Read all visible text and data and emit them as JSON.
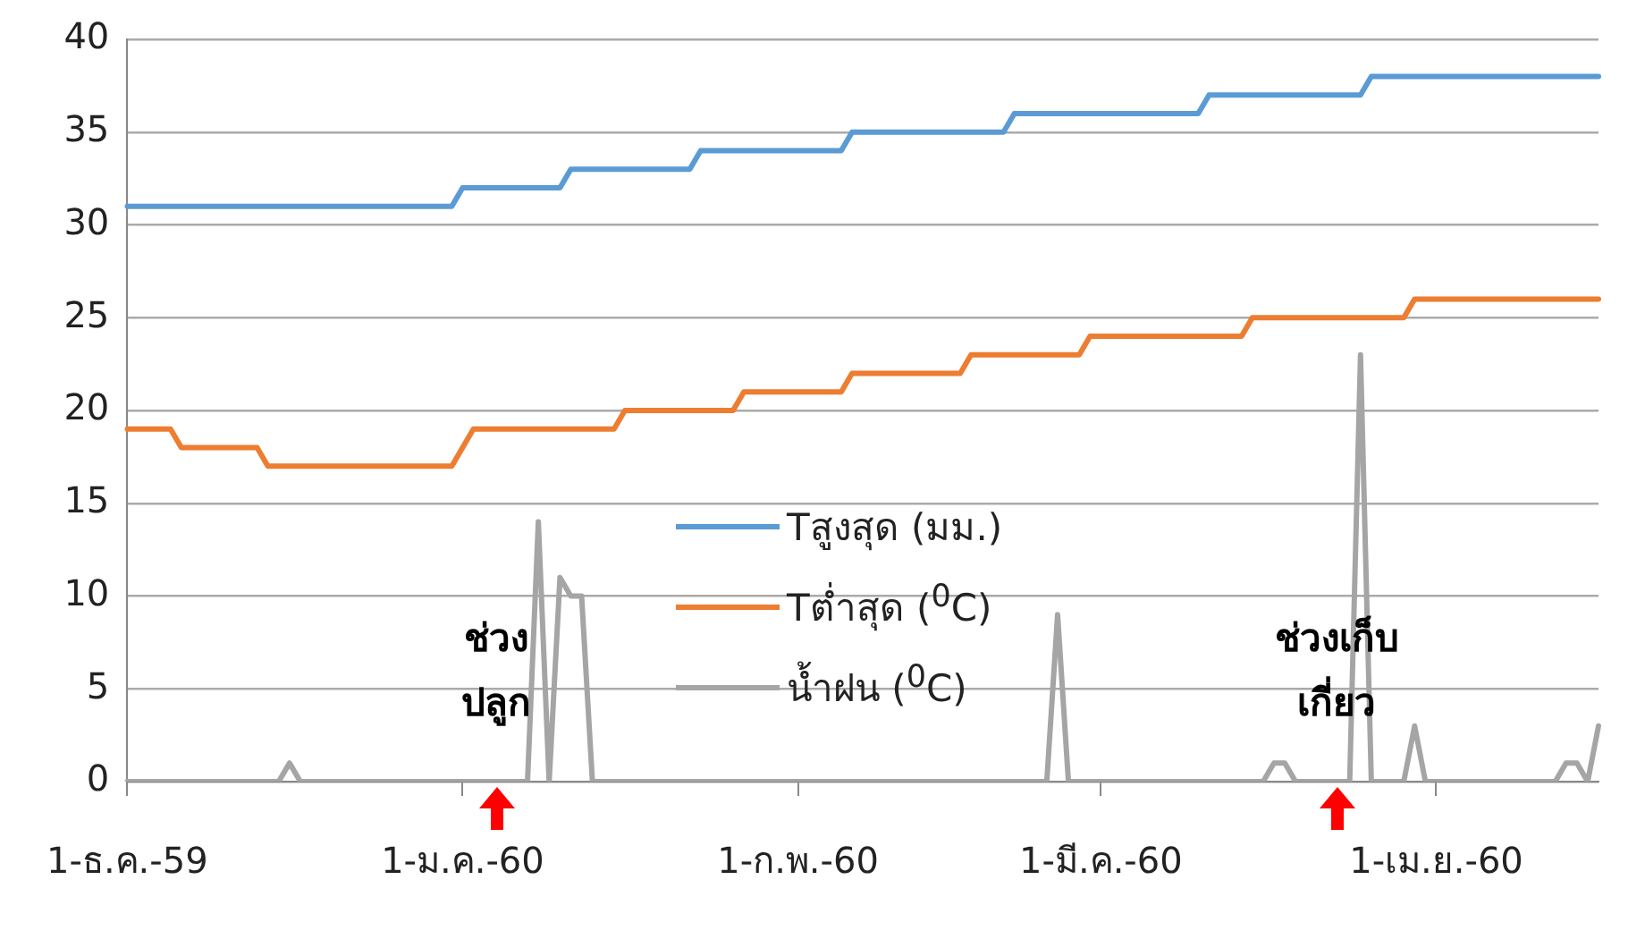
{
  "chart_data": {
    "type": "line",
    "ylim": [
      0,
      40
    ],
    "categories": [
      "1-ธ.ค.-59",
      null,
      null,
      null,
      null,
      null,
      null,
      null,
      null,
      null,
      null,
      null,
      null,
      null,
      null,
      null,
      null,
      null,
      null,
      null,
      null,
      null,
      null,
      null,
      null,
      null,
      null,
      null,
      null,
      null,
      null,
      "1-ม.ค.-60",
      null,
      null,
      null,
      null,
      null,
      null,
      null,
      null,
      null,
      null,
      null,
      null,
      null,
      null,
      null,
      null,
      null,
      null,
      null,
      null,
      null,
      null,
      null,
      null,
      null,
      null,
      null,
      null,
      null,
      null,
      "1-ก.พ.-60",
      null,
      null,
      null,
      null,
      null,
      null,
      null,
      null,
      null,
      null,
      null,
      null,
      null,
      null,
      null,
      null,
      null,
      null,
      null,
      null,
      null,
      null,
      null,
      null,
      null,
      null,
      null,
      "1-มี.ค.-60",
      null,
      null,
      null,
      null,
      null,
      null,
      null,
      null,
      null,
      null,
      null,
      null,
      null,
      null,
      null,
      null,
      null,
      null,
      null,
      null,
      null,
      null,
      null,
      null,
      null,
      null,
      null,
      null,
      null,
      null,
      "1-เม.ย.-60",
      null,
      null,
      null,
      null,
      null,
      null,
      null,
      null,
      null,
      null,
      null,
      null,
      null,
      null,
      null
    ],
    "yticks": [
      0,
      5,
      10,
      15,
      20,
      25,
      30,
      35,
      40
    ],
    "grid": "y",
    "legend": "center",
    "marker": "none",
    "line_style": "solid",
    "series": [
      {
        "name": "Tสูงสุด (มม.)",
        "color": "#5b9bd5",
        "values": [
          31,
          31,
          31,
          31,
          31,
          31,
          31,
          31,
          31,
          31,
          31,
          31,
          31,
          31,
          31,
          31,
          31,
          31,
          31,
          31,
          31,
          31,
          31,
          31,
          31,
          31,
          31,
          31,
          31,
          31,
          31,
          32,
          32,
          32,
          32,
          32,
          32,
          32,
          32,
          32,
          32,
          33,
          33,
          33,
          33,
          33,
          33,
          33,
          33,
          33,
          33,
          33,
          33,
          34,
          34,
          34,
          34,
          34,
          34,
          34,
          34,
          34,
          34,
          34,
          34,
          34,
          34,
          35,
          35,
          35,
          35,
          35,
          35,
          35,
          35,
          35,
          35,
          35,
          35,
          35,
          35,
          35,
          36,
          36,
          36,
          36,
          36,
          36,
          36,
          36,
          36,
          36,
          36,
          36,
          36,
          36,
          36,
          36,
          36,
          36,
          37,
          37,
          37,
          37,
          37,
          37,
          37,
          37,
          37,
          37,
          37,
          37,
          37,
          37,
          37,
          38,
          38,
          38,
          38,
          38,
          38,
          38,
          38,
          38,
          38,
          38,
          38,
          38,
          38,
          38,
          38,
          38,
          38,
          38,
          38,
          38,
          38
        ]
      },
      {
        "name": "Tต่ำสุด ($^{0}$C)",
        "color": "#ed7d31",
        "values": [
          19,
          19,
          19,
          19,
          19,
          18,
          18,
          18,
          18,
          18,
          18,
          18,
          18,
          17,
          17,
          17,
          17,
          17,
          17,
          17,
          17,
          17,
          17,
          17,
          17,
          17,
          17,
          17,
          17,
          17,
          17,
          18,
          19,
          19,
          19,
          19,
          19,
          19,
          19,
          19,
          19,
          19,
          19,
          19,
          19,
          19,
          20,
          20,
          20,
          20,
          20,
          20,
          20,
          20,
          20,
          20,
          20,
          21,
          21,
          21,
          21,
          21,
          21,
          21,
          21,
          21,
          21,
          22,
          22,
          22,
          22,
          22,
          22,
          22,
          22,
          22,
          22,
          22,
          23,
          23,
          23,
          23,
          23,
          23,
          23,
          23,
          23,
          23,
          23,
          24,
          24,
          24,
          24,
          24,
          24,
          24,
          24,
          24,
          24,
          24,
          24,
          24,
          24,
          24,
          25,
          25,
          25,
          25,
          25,
          25,
          25,
          25,
          25,
          25,
          25,
          25,
          25,
          25,
          25,
          26,
          26,
          26,
          26,
          26,
          26,
          26,
          26,
          26,
          26,
          26,
          26,
          26,
          26,
          26,
          26,
          26,
          26
        ]
      },
      {
        "name": "น้ำฝน ($^{0}$C)",
        "color": "#a5a5a5",
        "values": [
          0,
          0,
          0,
          0,
          0,
          0,
          0,
          0,
          0,
          0,
          0,
          0,
          0,
          0,
          0,
          1,
          0,
          0,
          0,
          0,
          0,
          0,
          0,
          0,
          0,
          0,
          0,
          0,
          0,
          0,
          0,
          0,
          0,
          0,
          0,
          0,
          0,
          0,
          14,
          0,
          11,
          10,
          10,
          0,
          0,
          0,
          0,
          0,
          0,
          0,
          0,
          0,
          0,
          0,
          0,
          0,
          0,
          0,
          0,
          0,
          0,
          0,
          0,
          0,
          0,
          0,
          0,
          0,
          0,
          0,
          0,
          0,
          0,
          0,
          0,
          0,
          0,
          0,
          0,
          0,
          0,
          0,
          0,
          0,
          0,
          0,
          9,
          0,
          0,
          0,
          0,
          0,
          0,
          0,
          0,
          0,
          0,
          0,
          0,
          0,
          0,
          0,
          0,
          0,
          0,
          0,
          1,
          1,
          0,
          0,
          0,
          0,
          0,
          0,
          23,
          0,
          0,
          0,
          0,
          3,
          0,
          0,
          0,
          0,
          0,
          0,
          0,
          0,
          0,
          0,
          0,
          0,
          0,
          1,
          1,
          0,
          3
        ]
      }
    ],
    "annotations": [
      "ช่วง\nปลูก",
      "ช่วงเก็บ\nเกี่ยว"
    ]
  }
}
